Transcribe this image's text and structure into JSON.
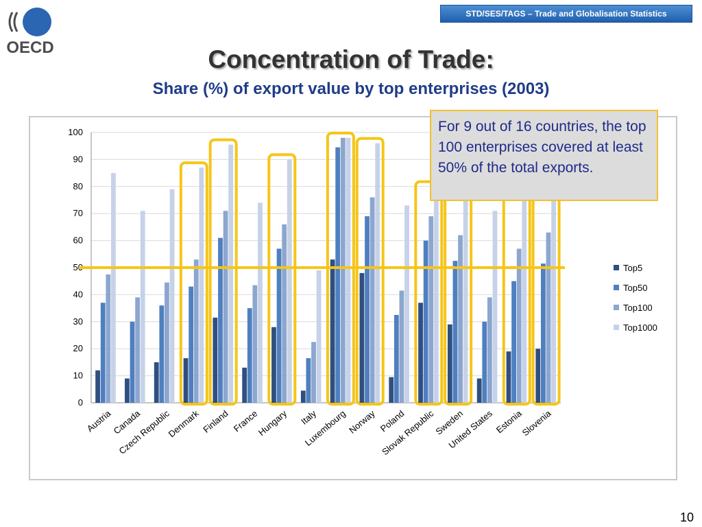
{
  "header": {
    "banner": "STD/SES/TAGS – Trade and Globalisation Statistics"
  },
  "logo": {
    "text": "OECD"
  },
  "slide": {
    "title": "Concentration of Trade:",
    "subtitle": "Share (%) of export value by top enterprises (2003)",
    "number": "10"
  },
  "callout": {
    "text": "For 9 out of 16 countries, the top 100 enterprises covered at least 50% of the total exports."
  },
  "colors": {
    "top5": "#2f4f80",
    "top50": "#4f7fbf",
    "top100": "#8ca6cf",
    "top1000": "#c6d2e8",
    "highlight": "#f5c518",
    "accent": "#2b66b3"
  },
  "chart_data": {
    "type": "bar",
    "title": "",
    "xlabel": "",
    "ylabel": "",
    "ylim": [
      0,
      100
    ],
    "yticks": [
      0,
      10,
      20,
      30,
      40,
      50,
      60,
      70,
      80,
      90,
      100
    ],
    "grid": true,
    "legend_position": "right",
    "categories": [
      "Austria",
      "Canada",
      "Czech Republic",
      "Denmark",
      "Finland",
      "France",
      "Hungary",
      "Italy",
      "Luxembourg",
      "Norway",
      "Poland",
      "Slovak Republic",
      "Sweden",
      "United States",
      "Estonia",
      "Slovenia"
    ],
    "series": [
      {
        "name": "Top5",
        "values": [
          12,
          9,
          15,
          16.5,
          31.5,
          13,
          28,
          4.5,
          53,
          48,
          9.5,
          37,
          29,
          9,
          19,
          20
        ]
      },
      {
        "name": "Top50",
        "values": [
          37,
          30,
          36,
          43,
          61,
          35,
          57,
          16.5,
          94.5,
          69,
          32.5,
          60,
          52.5,
          30,
          45,
          51.5
        ]
      },
      {
        "name": "Top100",
        "values": [
          47.5,
          39,
          44.5,
          53,
          71,
          43.5,
          66,
          22.5,
          98,
          76,
          41.5,
          69,
          62,
          39,
          57,
          63
        ]
      },
      {
        "name": "Top1000",
        "values": [
          85,
          71,
          79,
          87,
          95.5,
          74,
          90,
          49,
          98,
          96,
          73,
          80,
          80,
          71,
          80,
          80
        ]
      }
    ],
    "threshold_line": 50,
    "highlighted_categories": [
      "Denmark",
      "Finland",
      "Hungary",
      "Luxembourg",
      "Norway",
      "Slovak Republic",
      "Sweden",
      "Estonia",
      "Slovenia"
    ]
  }
}
